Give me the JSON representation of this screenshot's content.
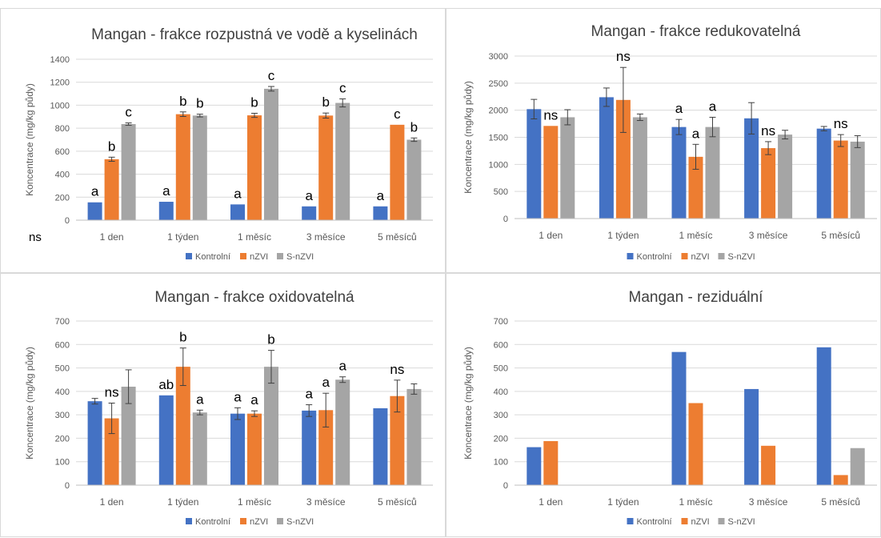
{
  "colors": {
    "Kontrolní": "#4472c4",
    "nZVI": "#ed7d31",
    "S-nZVI": "#a5a5a5"
  },
  "stray_text": [
    {
      "id": "ns",
      "text": "ns"
    }
  ],
  "chart_data": [
    {
      "type": "bar",
      "title": "Mangan - frakce rozpustná ve vodě a kyselinách",
      "ylabel": "Koncentrace (mg/kg půdy)",
      "xlabel": "",
      "categories": [
        "1 den",
        "1 týden",
        "1 měsíc",
        "3 měsíce",
        "5 měsíců"
      ],
      "ylim": [
        0,
        1400
      ],
      "yticks": [
        "0",
        "200",
        "400",
        "600",
        "800",
        "1000",
        "1200",
        "1400"
      ],
      "grid": true,
      "legend": "bottom",
      "series": [
        {
          "name": "Kontrolní",
          "values": [
            155,
            160,
            137,
            120,
            120
          ],
          "errors": [
            0,
            0,
            0,
            0,
            0
          ]
        },
        {
          "name": "nZVI",
          "values": [
            530,
            922,
            912,
            910,
            830
          ],
          "errors": [
            18,
            20,
            18,
            22,
            0
          ]
        },
        {
          "name": "S-nZVI",
          "values": [
            836,
            910,
            1143,
            1020,
            700
          ],
          "errors": [
            10,
            12,
            20,
            35,
            15
          ]
        }
      ],
      "annotations": [
        [
          "a",
          "b",
          "c"
        ],
        [
          "a",
          "b",
          "b"
        ],
        [
          "a",
          "b",
          "c"
        ],
        [
          "a",
          "b",
          "c"
        ],
        [
          "a",
          "c",
          "b"
        ]
      ]
    },
    {
      "type": "bar",
      "title": "Mangan - frakce redukovatelná",
      "ylabel": "Koncentrace (mg/kg půdy)",
      "xlabel": "",
      "categories": [
        "1 den",
        "1 týden",
        "1 měsíc",
        "3 měsíce",
        "5 měsíců"
      ],
      "ylim": [
        0,
        3000
      ],
      "yticks": [
        "0",
        "500",
        "1000",
        "1500",
        "2000",
        "2500",
        "3000"
      ],
      "grid": true,
      "legend": "bottom",
      "series": [
        {
          "name": "Kontrolní",
          "values": [
            2020,
            2240,
            1690,
            1850,
            1660
          ],
          "errors": [
            180,
            170,
            140,
            290,
            40
          ]
        },
        {
          "name": "nZVI",
          "values": [
            1710,
            2190,
            1140,
            1300,
            1440
          ],
          "errors": [
            0,
            600,
            230,
            120,
            110
          ]
        },
        {
          "name": "S-nZVI",
          "values": [
            1870,
            1870,
            1690,
            1550,
            1420
          ],
          "errors": [
            140,
            60,
            180,
            80,
            110
          ]
        }
      ],
      "annotations": [
        [
          "",
          "ns",
          ""
        ],
        [
          "",
          "ns",
          ""
        ],
        [
          "a",
          "a",
          "a"
        ],
        [
          "",
          "ns",
          ""
        ],
        [
          "",
          "ns",
          ""
        ]
      ]
    },
    {
      "type": "bar",
      "title": "Mangan - frakce oxidovatelná",
      "ylabel": "Koncentrace (mg/kg půdy)",
      "xlabel": "",
      "categories": [
        "1 den",
        "1 týden",
        "1 měsíc",
        "3 měsíce",
        "5 měsíců"
      ],
      "ylim": [
        0,
        700
      ],
      "yticks": [
        "0",
        "100",
        "200",
        "300",
        "400",
        "500",
        "600",
        "700"
      ],
      "grid": true,
      "legend": "bottom",
      "series": [
        {
          "name": "Kontrolní",
          "values": [
            358,
            383,
            305,
            318,
            328
          ],
          "errors": [
            12,
            0,
            25,
            25,
            0
          ]
        },
        {
          "name": "nZVI",
          "values": [
            285,
            505,
            305,
            320,
            380
          ],
          "errors": [
            65,
            80,
            12,
            72,
            68
          ]
        },
        {
          "name": "S-nZVI",
          "values": [
            420,
            310,
            505,
            450,
            410
          ],
          "errors": [
            72,
            10,
            70,
            12,
            22
          ]
        }
      ],
      "annotations": [
        [
          "",
          "ns",
          ""
        ],
        [
          "ab",
          "b",
          "a"
        ],
        [
          "a",
          "a",
          "b"
        ],
        [
          "a",
          "a",
          "a"
        ],
        [
          "",
          "ns",
          ""
        ]
      ]
    },
    {
      "type": "bar",
      "title": "Mangan - reziduální",
      "ylabel": "Koncentrace (mg/kg půdy)",
      "xlabel": "",
      "categories": [
        "1 den",
        "1 týden",
        "1 měsíc",
        "3 měsíce",
        "5 měsíců"
      ],
      "ylim": [
        0,
        700
      ],
      "yticks": [
        "0",
        "100",
        "200",
        "300",
        "400",
        "500",
        "600",
        "700"
      ],
      "grid": true,
      "legend": "bottom",
      "series": [
        {
          "name": "Kontrolní",
          "values": [
            162,
            0,
            568,
            410,
            588
          ]
        },
        {
          "name": "nZVI",
          "values": [
            188,
            0,
            350,
            168,
            43
          ]
        },
        {
          "name": "S-nZVI",
          "values": [
            0,
            0,
            0,
            0,
            158
          ]
        }
      ]
    }
  ]
}
